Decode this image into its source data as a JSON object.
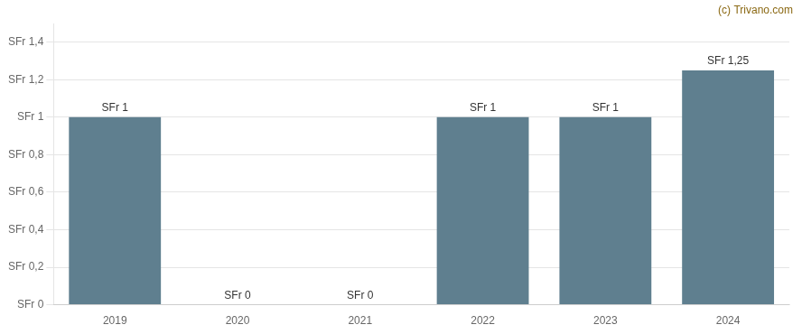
{
  "chart_data": {
    "type": "bar",
    "categories": [
      "2019",
      "2020",
      "2021",
      "2022",
      "2023",
      "2024"
    ],
    "values": [
      1.0,
      0.0,
      0.0,
      1.0,
      1.0,
      1.25
    ],
    "value_labels": [
      "SFr 1",
      "SFr 0",
      "SFr 0",
      "SFr 1",
      "SFr 1",
      "SFr 1,25"
    ],
    "data_labels": true,
    "color": "#5f7f8f",
    "ylim": [
      0,
      1.5
    ],
    "yticks": [
      {
        "value": 0,
        "label": "SFr 0"
      },
      {
        "value": 0.2,
        "label": "SFr 0,2"
      },
      {
        "value": 0.4,
        "label": "SFr 0,4"
      },
      {
        "value": 0.6,
        "label": "SFr 0,6"
      },
      {
        "value": 0.8,
        "label": "SFr 0,8"
      },
      {
        "value": 1.0,
        "label": "SFr 1"
      },
      {
        "value": 1.2,
        "label": "SFr 1,2"
      },
      {
        "value": 1.4,
        "label": "SFr 1,4"
      }
    ],
    "grid": true,
    "annotations": [
      {
        "text": "(c) Trivano.com",
        "color": "#8B6914"
      }
    ]
  }
}
